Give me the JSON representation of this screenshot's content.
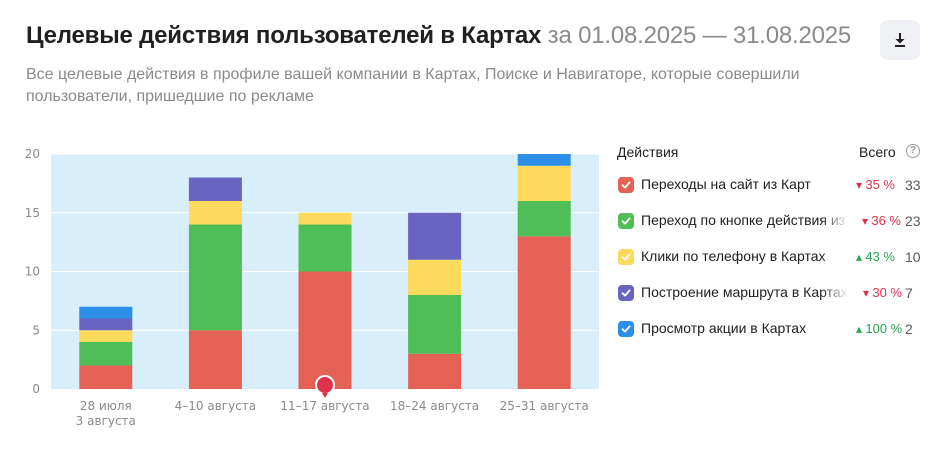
{
  "header": {
    "title": "Целевые действия пользователей в Картах",
    "period": "за 01.08.2025 — 31.08.2025",
    "subtitle": "Все целевые действия в профиле вашей компании в Картах, Поиске и Навигаторе, которые совершили пользователи, пришедшие по рекламе"
  },
  "legend": {
    "actions_header": "Действия",
    "total_header": "Всего",
    "help_glyph": "?",
    "items": [
      {
        "label": "Переходы на сайт из Карт",
        "change": "35 %",
        "direction": "down",
        "total": "33",
        "color": "#e36255"
      },
      {
        "label": "Переход по кнопке действия из Карт",
        "change": "36 %",
        "direction": "down",
        "total": "23",
        "color": "#4fbe57"
      },
      {
        "label": "Клики по телефону в Картах",
        "change": "43 %",
        "direction": "up",
        "total": "10",
        "color": "#fdd95c"
      },
      {
        "label": "Построение маршрута в Картах",
        "change": "30 %",
        "direction": "down",
        "total": "7",
        "color": "#6a64c1"
      },
      {
        "label": "Просмотр акции в Картах",
        "change": "100 %",
        "direction": "up",
        "total": "2",
        "color": "#2b8fe8"
      }
    ]
  },
  "icons": {
    "download": "download-icon",
    "help": "help-circle-icon",
    "checkbox": "checkmark-icon",
    "marker": "map-pin-icon"
  },
  "colors": {
    "plot_bg": "#d8eefa",
    "down": "#e0314b",
    "up": "#27a34d",
    "tick": "#8a8a8a"
  },
  "chart_data": {
    "type": "bar",
    "stacked": true,
    "categories": [
      [
        "28 июля",
        "3 августа"
      ],
      [
        "4–10 августа"
      ],
      [
        "11–17 августа"
      ],
      [
        "18–24 августа"
      ],
      [
        "25–31 августа"
      ]
    ],
    "series": [
      {
        "name": "Переходы на сайт из Карт",
        "values": [
          2,
          5,
          10,
          3,
          13
        ]
      },
      {
        "name": "Переход по кнопке действия из Карт",
        "values": [
          2,
          9,
          4,
          5,
          3
        ]
      },
      {
        "name": "Клики по телефону в Картах",
        "values": [
          1,
          2,
          1,
          3,
          3
        ]
      },
      {
        "name": "Построение маршрута в Картах",
        "values": [
          1,
          2,
          0,
          4,
          0
        ]
      },
      {
        "name": "Просмотр акции в Картах",
        "values": [
          1,
          0,
          0,
          0,
          1
        ]
      }
    ],
    "ylim": [
      0,
      20
    ],
    "yticks": [
      0,
      5,
      10,
      15,
      20
    ],
    "grid": true,
    "legend": "right",
    "marker_category_index": 2
  }
}
